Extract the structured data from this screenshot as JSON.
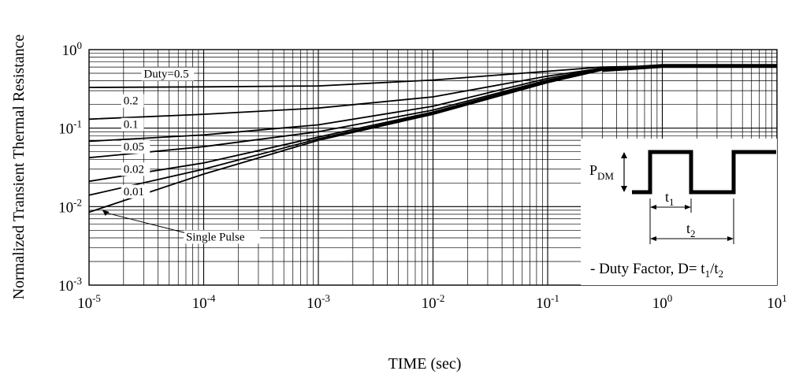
{
  "chart_data": {
    "type": "line",
    "title": "",
    "xlabel": "TIME (sec)",
    "ylabel": "Normalized Transient Thermal Resistance",
    "x_scale": "log",
    "y_scale": "log",
    "xlim": [
      1e-05,
      10
    ],
    "ylim": [
      0.001,
      1
    ],
    "grid": true,
    "x_ticks": [
      {
        "base": "10",
        "exp": "-5",
        "value": 1e-05
      },
      {
        "base": "10",
        "exp": "-4",
        "value": 0.0001
      },
      {
        "base": "10",
        "exp": "-3",
        "value": 0.001
      },
      {
        "base": "10",
        "exp": "-2",
        "value": 0.01
      },
      {
        "base": "10",
        "exp": "-1",
        "value": 0.1
      },
      {
        "base": "10",
        "exp": "0",
        "value": 1
      },
      {
        "base": "10",
        "exp": "1",
        "value": 10
      }
    ],
    "y_ticks": [
      {
        "base": "10",
        "exp": "-3",
        "value": 0.001
      },
      {
        "base": "10",
        "exp": "-2",
        "value": 0.01
      },
      {
        "base": "10",
        "exp": "-1",
        "value": 0.1
      },
      {
        "base": "10",
        "exp": "0",
        "value": 1
      }
    ],
    "series": [
      {
        "name": "Duty=0.5",
        "label_at": [
          3e-05,
          0.44
        ],
        "points": [
          [
            1e-05,
            0.33
          ],
          [
            0.0001,
            0.335
          ],
          [
            0.001,
            0.345
          ],
          [
            0.01,
            0.41
          ],
          [
            0.1,
            0.53
          ],
          [
            0.3,
            0.6
          ],
          [
            1,
            0.62
          ],
          [
            10,
            0.62
          ]
        ]
      },
      {
        "name": "0.2",
        "label_at": [
          2e-05,
          0.2
        ],
        "points": [
          [
            1e-05,
            0.13
          ],
          [
            0.0001,
            0.15
          ],
          [
            0.001,
            0.18
          ],
          [
            0.01,
            0.25
          ],
          [
            0.1,
            0.46
          ],
          [
            0.3,
            0.58
          ],
          [
            1,
            0.62
          ],
          [
            10,
            0.62
          ]
        ]
      },
      {
        "name": "0.1",
        "label_at": [
          2e-05,
          0.1
        ],
        "points": [
          [
            1e-05,
            0.068
          ],
          [
            0.0001,
            0.082
          ],
          [
            0.001,
            0.11
          ],
          [
            0.01,
            0.19
          ],
          [
            0.1,
            0.43
          ],
          [
            0.3,
            0.57
          ],
          [
            1,
            0.62
          ],
          [
            10,
            0.62
          ]
        ]
      },
      {
        "name": "0.05",
        "label_at": [
          2e-05,
          0.052
        ],
        "points": [
          [
            1e-05,
            0.042
          ],
          [
            0.0001,
            0.058
          ],
          [
            0.001,
            0.09
          ],
          [
            0.01,
            0.17
          ],
          [
            0.1,
            0.41
          ],
          [
            0.3,
            0.56
          ],
          [
            1,
            0.62
          ],
          [
            10,
            0.62
          ]
        ]
      },
      {
        "name": "0.02",
        "label_at": [
          2e-05,
          0.027
        ],
        "points": [
          [
            1e-05,
            0.021
          ],
          [
            0.0001,
            0.036
          ],
          [
            0.001,
            0.077
          ],
          [
            0.01,
            0.16
          ],
          [
            0.1,
            0.4
          ],
          [
            0.3,
            0.56
          ],
          [
            1,
            0.62
          ],
          [
            10,
            0.62
          ]
        ]
      },
      {
        "name": "0.01",
        "label_at": [
          2e-05,
          0.014
        ],
        "points": [
          [
            1e-05,
            0.014
          ],
          [
            0.0001,
            0.03
          ],
          [
            0.001,
            0.073
          ],
          [
            0.01,
            0.155
          ],
          [
            0.1,
            0.39
          ],
          [
            0.3,
            0.55
          ],
          [
            1,
            0.62
          ],
          [
            10,
            0.62
          ]
        ]
      },
      {
        "name": "Single Pulse",
        "label_at": [
          7e-05,
          0.0037
        ],
        "points": [
          [
            1e-05,
            0.0085
          ],
          [
            0.0001,
            0.026
          ],
          [
            0.001,
            0.07
          ],
          [
            0.01,
            0.15
          ],
          [
            0.1,
            0.38
          ],
          [
            0.3,
            0.55
          ],
          [
            1,
            0.62
          ],
          [
            10,
            0.62
          ]
        ]
      }
    ],
    "inset": {
      "pdm_label": "P",
      "pdm_sub": "DM",
      "t1_label": "t",
      "t1_sub": "1",
      "t2_label": "t",
      "t2_sub": "2",
      "duty_text": "- Duty Factor, D= t",
      "duty_sub1": "1",
      "duty_slash": "/t",
      "duty_sub2": "2"
    }
  }
}
